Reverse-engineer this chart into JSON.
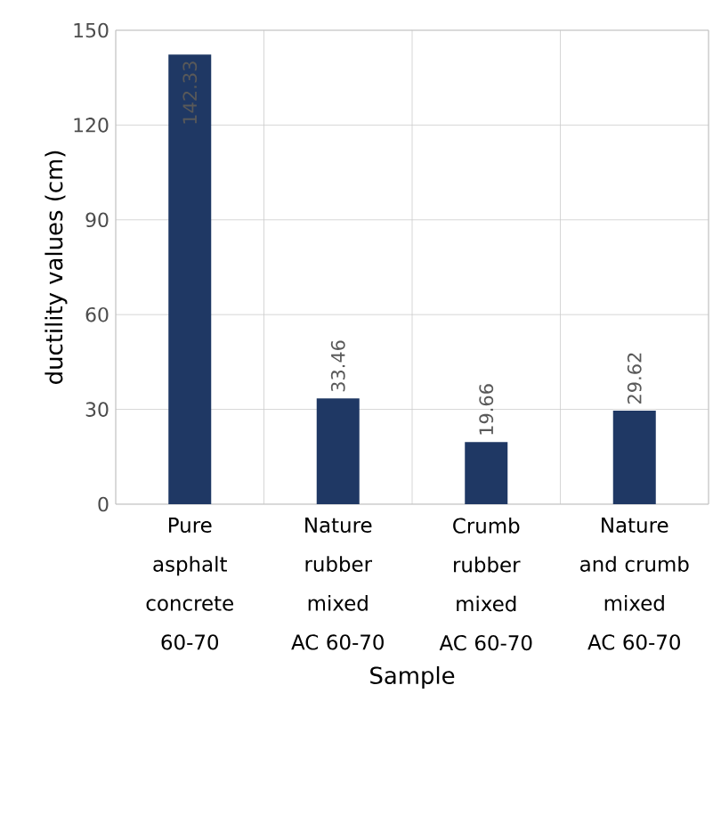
{
  "chart_data": {
    "type": "bar",
    "xlabel": "Sample",
    "ylabel": "ductility values (cm)",
    "categories": [
      "Pure asphalt concrete 60-70",
      "Nature rubber mixed AC 60-70",
      "Crumb rubber mixed AC 60-70",
      "Nature and crumb mixed AC 60-70"
    ],
    "values": [
      142.33,
      33.46,
      19.66,
      29.62
    ],
    "value_labels": [
      "142.33",
      "33.46",
      "19.66",
      "29.62"
    ],
    "color": "#1f3864",
    "ylim": [
      0,
      150
    ],
    "yticks": [
      0,
      30,
      60,
      90,
      120,
      150
    ],
    "grid": true
  }
}
